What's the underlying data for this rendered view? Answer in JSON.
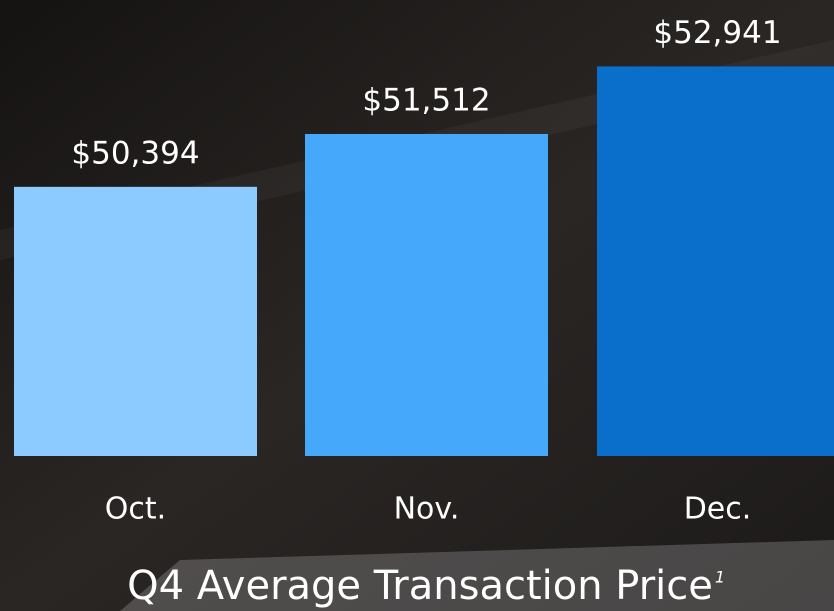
{
  "chart_data": {
    "type": "bar",
    "title": "Q4 Average Transaction Price",
    "title_footnote": "1",
    "categories": [
      "Oct.",
      "Nov.",
      "Dec."
    ],
    "values": [
      50394,
      51512,
      52941
    ],
    "value_labels": [
      "$50,394",
      "$51,512",
      "$52,941"
    ],
    "colors": [
      "#8ccbff",
      "#45a8fa",
      "#0a6fca"
    ],
    "ylim": [
      44700,
      53500
    ]
  }
}
